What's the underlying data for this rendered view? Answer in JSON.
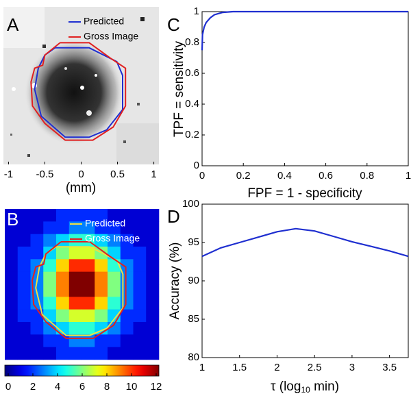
{
  "chart_data": [
    {
      "type": "image",
      "label": "A",
      "xlim": [
        -1.07,
        1.07
      ],
      "xticks": [
        -1,
        -0.5,
        0,
        0.5,
        1
      ],
      "xlabel": "(mm)",
      "series": [
        {
          "name": "Predicted",
          "color": "#1f2fd0",
          "x": [
            -0.36,
            0.11,
            0.49,
            0.57,
            0.57,
            0.35,
            0.11,
            -0.22,
            -0.55,
            -0.64,
            -0.59,
            -0.5,
            -0.36
          ],
          "values": [
            0.52,
            0.52,
            0.33,
            0.14,
            -0.33,
            -0.61,
            -0.71,
            -0.71,
            -0.42,
            -0.05,
            0.24,
            0.42,
            0.52
          ]
        },
        {
          "name": "Gross Image",
          "color": "#e02020",
          "x": [
            -0.29,
            0.11,
            0.4,
            0.61,
            0.61,
            0.44,
            0.16,
            -0.22,
            -0.5,
            -0.67,
            -0.69,
            -0.64,
            -0.53,
            -0.5,
            -0.29
          ],
          "values": [
            0.59,
            0.59,
            0.38,
            0.24,
            -0.28,
            -0.57,
            -0.75,
            -0.75,
            -0.52,
            -0.28,
            0.05,
            0.24,
            0.28,
            0.42,
            0.59
          ]
        }
      ]
    },
    {
      "type": "heatmap",
      "label": "B",
      "values": [
        [
          1,
          1,
          1,
          1,
          2,
          2,
          2,
          2,
          1,
          1,
          1,
          1
        ],
        [
          1,
          1,
          1,
          2,
          2,
          3,
          3,
          2,
          2,
          1,
          1,
          1
        ],
        [
          1,
          1,
          2,
          3,
          4,
          5,
          5,
          4,
          3,
          2,
          1,
          1
        ],
        [
          1,
          2,
          2,
          4,
          6,
          7,
          7,
          6,
          4,
          2,
          2,
          1
        ],
        [
          1,
          2,
          3,
          5,
          8,
          10,
          10,
          8,
          5,
          3,
          2,
          1
        ],
        [
          1,
          2,
          3,
          6,
          9,
          12,
          12,
          9,
          6,
          3,
          2,
          1
        ],
        [
          1,
          2,
          3,
          6,
          9,
          12,
          12,
          9,
          6,
          3,
          2,
          1
        ],
        [
          1,
          2,
          3,
          5,
          8,
          10,
          10,
          8,
          5,
          3,
          2,
          1
        ],
        [
          1,
          2,
          2,
          4,
          6,
          7,
          7,
          6,
          4,
          2,
          2,
          1
        ],
        [
          1,
          1,
          2,
          3,
          4,
          5,
          5,
          4,
          3,
          2,
          1,
          1
        ],
        [
          1,
          1,
          1,
          2,
          2,
          3,
          3,
          2,
          2,
          1,
          1,
          1
        ],
        [
          1,
          1,
          1,
          1,
          2,
          2,
          2,
          2,
          1,
          1,
          1,
          1
        ]
      ],
      "clim": [
        0,
        12
      ],
      "cticks": [
        0,
        2,
        4,
        6,
        8,
        10,
        12
      ],
      "series": [
        {
          "name": "Predicted",
          "color": "#f0e040",
          "x": [
            -0.36,
            0.11,
            0.49,
            0.57,
            0.57,
            0.35,
            0.11,
            -0.22,
            -0.55,
            -0.64,
            -0.59,
            -0.5,
            -0.36
          ],
          "values": [
            0.52,
            0.52,
            0.33,
            0.14,
            -0.33,
            -0.61,
            -0.71,
            -0.71,
            -0.42,
            -0.05,
            0.24,
            0.42,
            0.52
          ]
        },
        {
          "name": "Gross Image",
          "color": "#e02020",
          "x": [
            -0.29,
            0.11,
            0.4,
            0.61,
            0.61,
            0.44,
            0.16,
            -0.22,
            -0.5,
            -0.67,
            -0.69,
            -0.64,
            -0.53,
            -0.5,
            -0.29
          ],
          "values": [
            0.59,
            0.59,
            0.38,
            0.24,
            -0.28,
            -0.57,
            -0.75,
            -0.75,
            -0.52,
            -0.28,
            0.05,
            0.24,
            0.28,
            0.42,
            0.59
          ]
        }
      ]
    },
    {
      "type": "line",
      "label": "C",
      "xlabel": "FPF = 1 - specificity",
      "ylabel": "TPF = sensitivity",
      "xlim": [
        0,
        1
      ],
      "ylim": [
        0,
        1
      ],
      "xticks": [
        0,
        0.2,
        0.4,
        0.6,
        0.8,
        1
      ],
      "yticks": [
        0,
        0.2,
        0.4,
        0.6,
        0.8,
        1
      ],
      "series": [
        {
          "color": "#1f2fd0",
          "x": [
            0,
            0.002,
            0.01,
            0.02,
            0.04,
            0.06,
            0.1,
            0.15,
            1
          ],
          "values": [
            0.75,
            0.85,
            0.9,
            0.93,
            0.96,
            0.98,
            0.995,
            1,
            1
          ]
        }
      ]
    },
    {
      "type": "line",
      "label": "D",
      "xlabel_parts": [
        "τ (log",
        "10",
        " min)"
      ],
      "ylabel": "Accuracy (%)",
      "xlim": [
        1,
        3.75
      ],
      "ylim": [
        80,
        100
      ],
      "xticks": [
        1,
        1.5,
        2,
        2.5,
        3,
        3.5
      ],
      "yticks": [
        80,
        85,
        90,
        95,
        100
      ],
      "series": [
        {
          "color": "#1f2fd0",
          "x": [
            1,
            1.25,
            1.5,
            1.75,
            2,
            2.25,
            2.5,
            2.75,
            3,
            3.25,
            3.5,
            3.75
          ],
          "values": [
            93.2,
            94.3,
            95.0,
            95.7,
            96.4,
            96.8,
            96.5,
            95.8,
            95.1,
            94.5,
            93.9,
            93.2
          ]
        }
      ]
    }
  ]
}
